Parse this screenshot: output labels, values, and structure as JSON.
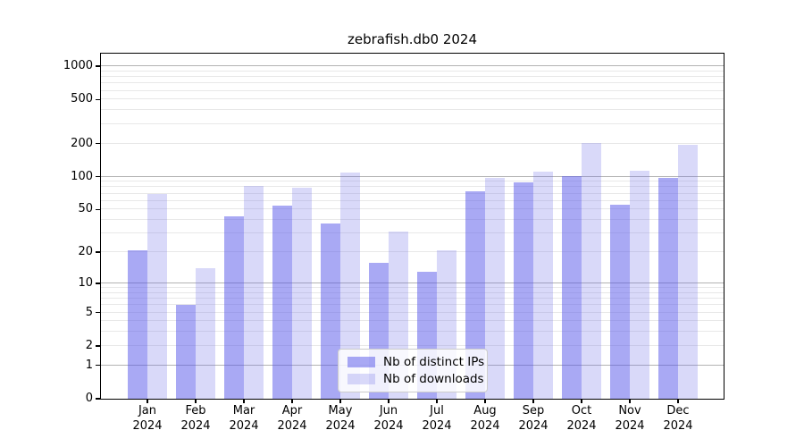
{
  "chart_data": {
    "type": "bar",
    "title": "zebrafish.db0 2024",
    "categories": [
      "Jan",
      "Feb",
      "Mar",
      "Apr",
      "May",
      "Jun",
      "Jul",
      "Aug",
      "Sep",
      "Oct",
      "Nov",
      "Dec"
    ],
    "year_label": "2024",
    "series": [
      {
        "name": "Nb of distinct IPs",
        "color": "rgba(83,83,233,0.5)",
        "values": [
          21,
          6,
          43,
          54,
          37,
          16,
          13,
          73,
          88,
          102,
          55,
          98
        ]
      },
      {
        "name": "Nb of downloads",
        "color": "rgba(114,114,233,0.27)",
        "values": [
          70,
          14,
          82,
          79,
          108,
          31,
          21,
          98,
          112,
          202,
          114,
          195
        ]
      }
    ],
    "xlabel": "",
    "ylabel": "",
    "y_scale": "log1p",
    "ylim": [
      0,
      1300
    ],
    "y_ticks": [
      0,
      1,
      2,
      5,
      10,
      20,
      50,
      100,
      200,
      500,
      1000
    ],
    "y_major_gridlines": [
      1,
      10,
      100,
      1000
    ],
    "y_minor_gridlines": [
      2,
      3,
      4,
      5,
      6,
      7,
      8,
      9,
      20,
      30,
      40,
      50,
      60,
      70,
      80,
      90,
      200,
      300,
      400,
      500,
      600,
      700,
      800,
      900
    ],
    "grid": true,
    "legend_position": "bottom-center"
  },
  "colors": {
    "background": "#ffffff",
    "spine": "#000000",
    "major_gridline": "#b3b3b3",
    "minor_gridline": "#e8e8e8",
    "text": "#000000",
    "legend_border": "#cccccc"
  }
}
